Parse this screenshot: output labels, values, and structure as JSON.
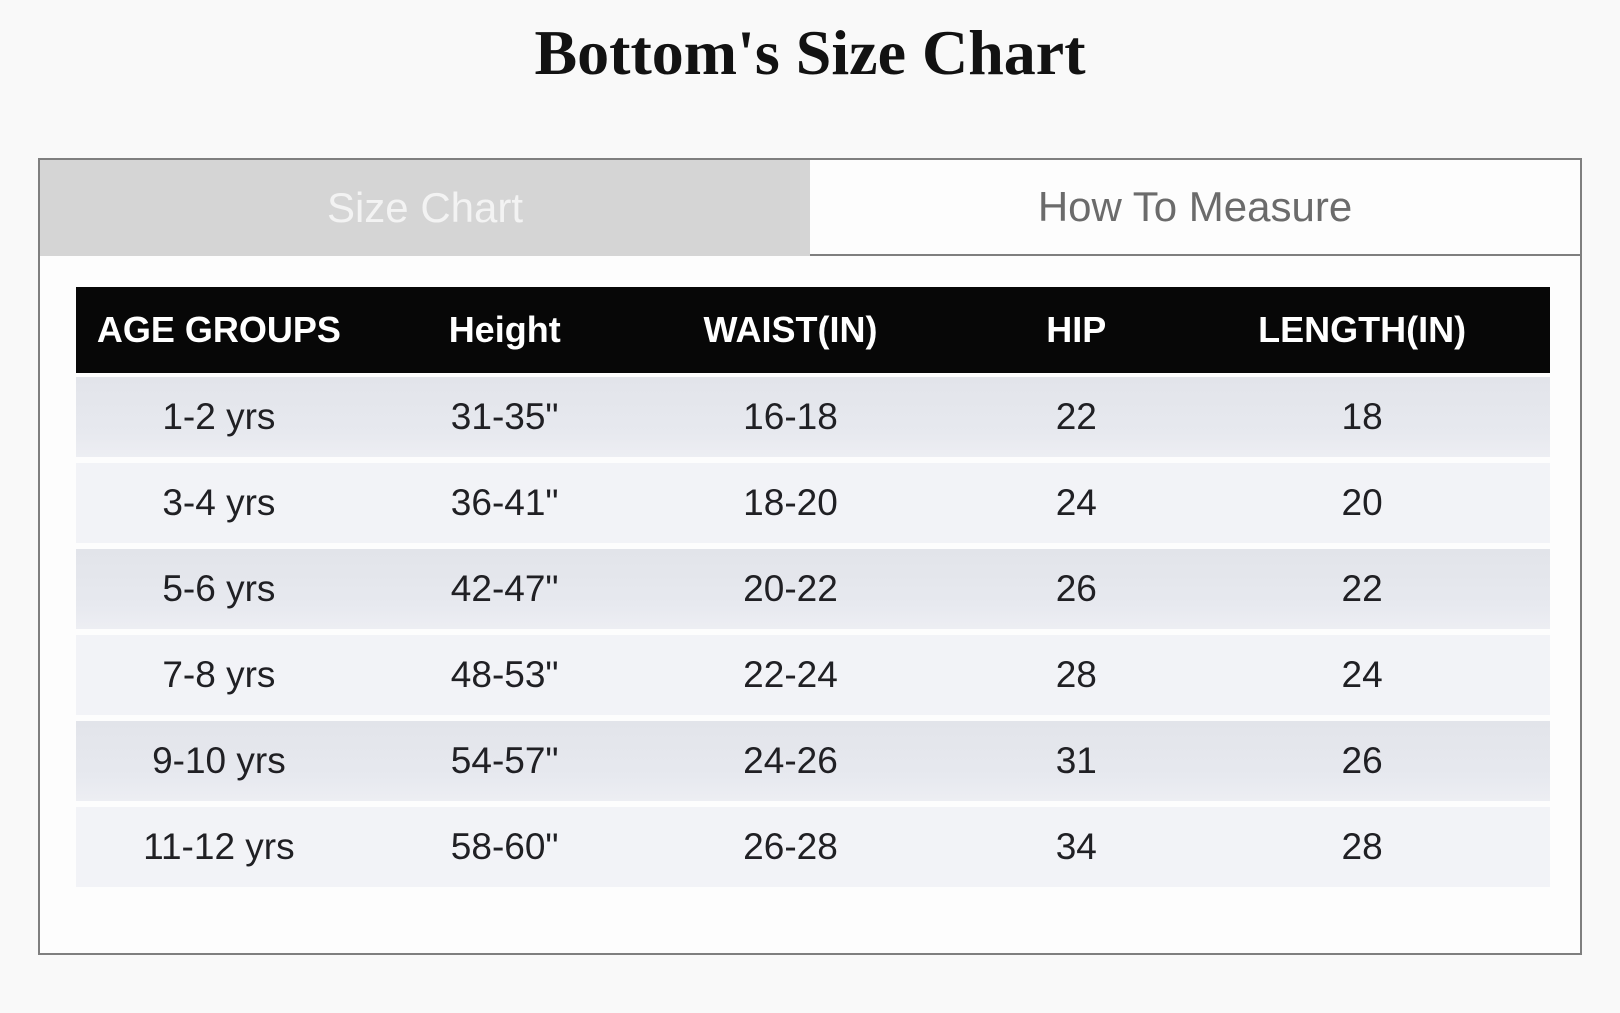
{
  "page": {
    "title": "Bottom's Size Chart"
  },
  "tabs": [
    {
      "label": "Size Chart",
      "active": true
    },
    {
      "label": "How To Measure",
      "active": false
    }
  ],
  "table": {
    "headers": [
      "AGE GROUPS",
      "Height",
      "WAIST(IN)",
      "HIP",
      "LENGTH(IN)"
    ],
    "rows": [
      [
        "1-2 yrs",
        "31-35\"",
        "16-18",
        "22",
        "18"
      ],
      [
        "3-4 yrs",
        "36-41\"",
        "18-20",
        "24",
        "20"
      ],
      [
        "5-6 yrs",
        "42-47\"",
        "20-22",
        "26",
        "22"
      ],
      [
        "7-8 yrs",
        "48-53\"",
        "22-24",
        "28",
        "24"
      ],
      [
        "9-10 yrs",
        "54-57\"",
        "24-26",
        "31",
        "26"
      ],
      [
        "11-12 yrs",
        "58-60\"",
        "26-28",
        "34",
        "28"
      ]
    ]
  },
  "colors": {
    "page_background": "#f9f9f9",
    "panel_border": "#7f7f7f",
    "active_tab_background": "#d5d5d5",
    "active_tab_text": "#f3f3f3",
    "inactive_tab_text": "#6b6b6b",
    "table_header_background": "#070707",
    "table_header_text": "#ffffff",
    "row_stripe_dark": "#e2e4ea",
    "row_stripe_light": "#f2f3f7",
    "cell_text": "#202024"
  }
}
